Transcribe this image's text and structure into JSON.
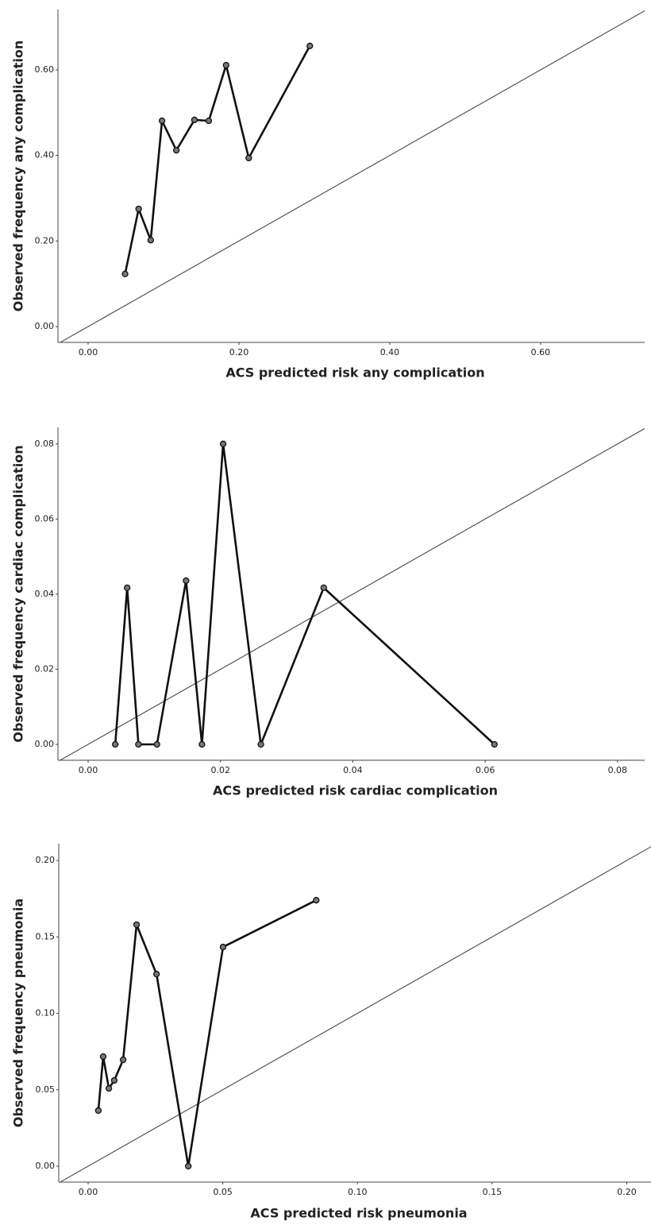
{
  "chart_data": [
    {
      "type": "line",
      "markers": true,
      "diagonal": true,
      "color": "#111111",
      "x_label": "ACS predicted risk any complication",
      "y_label": "Observed frequency any complication",
      "x": [
        0.049,
        0.067,
        0.083,
        0.098,
        0.117,
        0.141,
        0.16,
        0.183,
        0.213,
        0.294
      ],
      "values": [
        0.123,
        0.275,
        0.202,
        0.481,
        0.412,
        0.483,
        0.481,
        0.611,
        0.394,
        0.656
      ],
      "xlim": [
        -0.04,
        0.738
      ],
      "ylim": [
        -0.037,
        0.741
      ],
      "xticks": [
        {
          "value": 0,
          "label": "0.00"
        },
        {
          "value": 0.2,
          "label": "0.20"
        },
        {
          "value": 0.4,
          "label": "0.40"
        },
        {
          "value": 0.6,
          "label": "0.60"
        }
      ],
      "yticks": [
        {
          "value": 0,
          "label": "0.00"
        },
        {
          "value": 0.2,
          "label": "0.20"
        },
        {
          "value": 0.4,
          "label": "0.40"
        },
        {
          "value": 0.6,
          "label": "0.60"
        }
      ]
    },
    {
      "type": "line",
      "markers": true,
      "diagonal": true,
      "color": "#111111",
      "x_label": "ACS predicted risk cardiac complication",
      "y_label": "Observed frequency cardiac complication",
      "x": [
        0.0041,
        0.0059,
        0.0076,
        0.0104,
        0.0148,
        0.0172,
        0.0204,
        0.0261,
        0.0356,
        0.0614
      ],
      "values": [
        0,
        0.0417,
        0,
        0,
        0.0436,
        0,
        0.08,
        0,
        0.0417,
        0
      ],
      "xlim": [
        -0.00456,
        0.0841
      ],
      "ylim": [
        -0.00423,
        0.0844
      ],
      "xticks": [
        {
          "value": 0,
          "label": "0.00"
        },
        {
          "value": 0.02,
          "label": "0.02"
        },
        {
          "value": 0.04,
          "label": "0.04"
        },
        {
          "value": 0.06,
          "label": "0.06"
        },
        {
          "value": 0.08,
          "label": "0.08"
        }
      ],
      "yticks": [
        {
          "value": 0,
          "label": "0.00"
        },
        {
          "value": 0.02,
          "label": "0.02"
        },
        {
          "value": 0.04,
          "label": "0.04"
        },
        {
          "value": 0.06,
          "label": "0.06"
        },
        {
          "value": 0.08,
          "label": "0.08"
        }
      ]
    },
    {
      "type": "line",
      "markers": true,
      "diagonal": true,
      "color": "#111111",
      "x_label": "ACS predicted risk pneumonia",
      "y_label": "Observed frequency pneumonia",
      "x": [
        0.0038,
        0.0056,
        0.0077,
        0.0097,
        0.013,
        0.018,
        0.0254,
        0.0372,
        0.0501,
        0.0847
      ],
      "values": [
        0.0364,
        0.0717,
        0.0509,
        0.0561,
        0.0696,
        0.158,
        0.1257,
        0,
        0.1434,
        0.174
      ],
      "xlim": [
        -0.0109,
        0.209
      ],
      "ylim": [
        -0.0104,
        0.211
      ],
      "xticks": [
        {
          "value": 0,
          "label": "0.00"
        },
        {
          "value": 0.05,
          "label": "0.05"
        },
        {
          "value": 0.1,
          "label": "0.10"
        },
        {
          "value": 0.15,
          "label": "0.15"
        },
        {
          "value": 0.2,
          "label": "0.20"
        }
      ],
      "yticks": [
        {
          "value": 0,
          "label": "0.00"
        },
        {
          "value": 0.05,
          "label": "0.05"
        },
        {
          "value": 0.1,
          "label": "0.10"
        },
        {
          "value": 0.15,
          "label": "0.15"
        },
        {
          "value": 0.2,
          "label": "0.20"
        }
      ]
    }
  ]
}
